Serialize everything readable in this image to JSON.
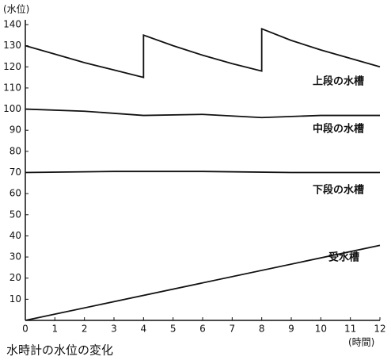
{
  "chart_data": {
    "type": "line",
    "y_label": "(水位)",
    "x_label": "(時間)",
    "caption": "水時計の水位の変化",
    "xlim": [
      0,
      12
    ],
    "xticks": [
      0,
      1,
      2,
      3,
      4,
      5,
      6,
      7,
      8,
      9,
      10,
      11,
      12
    ],
    "ylim": [
      0,
      140
    ],
    "yticks": [
      10,
      20,
      30,
      40,
      50,
      60,
      70,
      80,
      90,
      100,
      110,
      120,
      130,
      140
    ],
    "grid": false,
    "series": [
      {
        "name": "上段の水槽",
        "color": "#111111",
        "x": [
          0,
          1,
          2,
          3,
          4,
          4,
          5,
          6,
          7,
          8,
          8,
          9,
          10,
          11,
          12
        ],
        "values": [
          130,
          126,
          122,
          118.5,
          115,
          135,
          130,
          125.5,
          121.5,
          118,
          138,
          132.5,
          128,
          124,
          120
        ]
      },
      {
        "name": "中段の水槽",
        "color": "#111111",
        "x": [
          0,
          2,
          4,
          6,
          8,
          10,
          12
        ],
        "values": [
          100,
          99,
          97,
          97.5,
          96,
          97,
          97
        ]
      },
      {
        "name": "下段の水槽",
        "color": "#111111",
        "x": [
          0,
          3,
          6,
          9,
          12
        ],
        "values": [
          70,
          70.5,
          70.5,
          70,
          70
        ]
      },
      {
        "name": "受水槽",
        "color": "#111111",
        "x": [
          0,
          12
        ],
        "values": [
          0,
          35.5
        ]
      }
    ]
  }
}
